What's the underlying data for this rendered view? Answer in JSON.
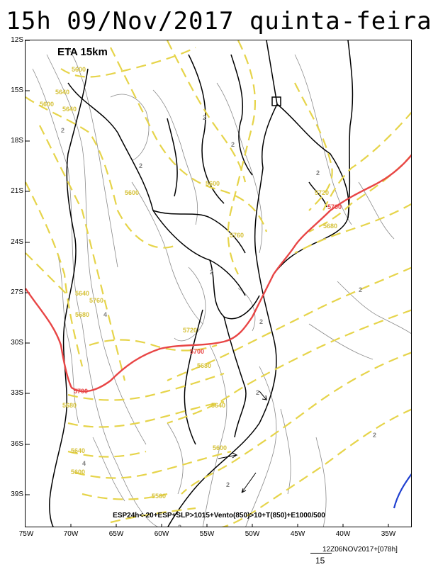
{
  "title": "15h 09/Nov/2017 quinta-feira",
  "model_label": "ETA 15km",
  "caption": "ESP24h<-20+ESP+SLP>1015+Vento(850)>10+T(850)+E1000/500",
  "footer": {
    "run_info": "12Z06NOV2017+[078h]",
    "scale_value": "15"
  },
  "axes": {
    "lat_labels": [
      "12S",
      "15S",
      "18S",
      "21S",
      "24S",
      "27S",
      "30S",
      "33S",
      "36S",
      "39S"
    ],
    "lon_labels": [
      "75W",
      "70W",
      "65W",
      "60W",
      "55W",
      "50W",
      "45W",
      "40W",
      "35W"
    ]
  },
  "colors": {
    "thickness_line": "#e6d44a",
    "thickness_5700": "#e84545",
    "coastline": "#000000",
    "isobar": "#808080",
    "precip_contour": "#2040d0"
  },
  "contour_labels": [
    {
      "text": "5600"
    },
    {
      "text": "5640"
    },
    {
      "text": "5600"
    },
    {
      "text": "5640"
    },
    {
      "text": "5600"
    },
    {
      "text": "5600"
    },
    {
      "text": "5720"
    },
    {
      "text": "5700"
    },
    {
      "text": "5680"
    },
    {
      "text": "5760"
    },
    {
      "text": "5640"
    },
    {
      "text": "5760"
    },
    {
      "text": "5680"
    },
    {
      "text": "5720"
    },
    {
      "text": "5700"
    },
    {
      "text": "5680"
    },
    {
      "text": "5700"
    },
    {
      "text": "5680"
    },
    {
      "text": "5640"
    },
    {
      "text": "5600"
    },
    {
      "text": "5640"
    },
    {
      "text": "5600"
    },
    {
      "text": "5560"
    }
  ],
  "isobar_labels": [
    "2",
    "2",
    "2",
    "2",
    "2",
    "2",
    "2",
    "2",
    "2",
    "4",
    "4",
    "2",
    "2",
    "2"
  ]
}
